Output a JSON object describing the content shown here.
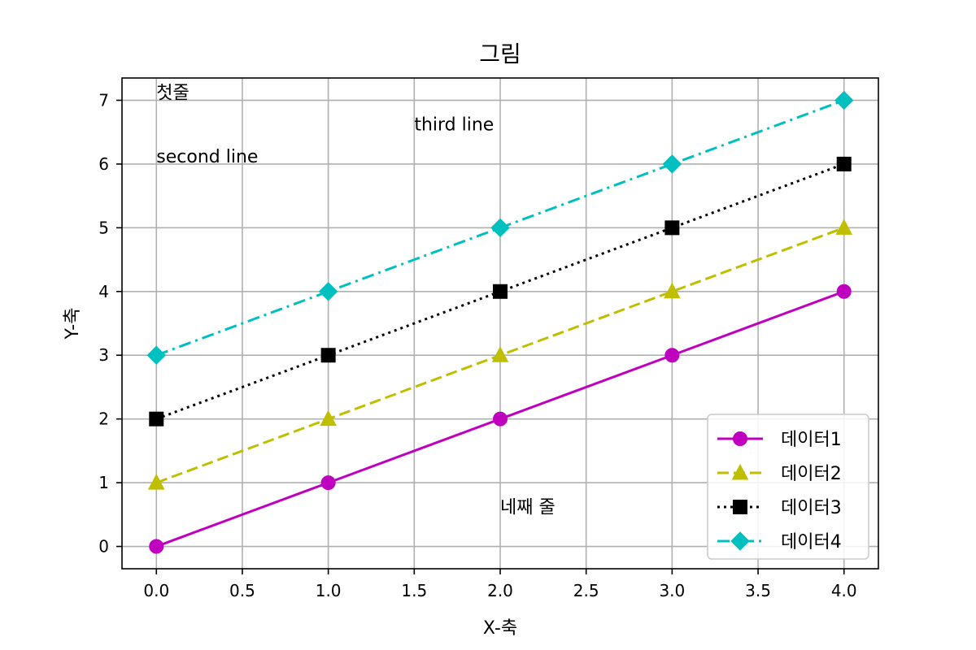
{
  "chart_data": {
    "type": "line",
    "title": "그림",
    "xlabel": "X-축",
    "ylabel": "Y-축",
    "xlim": [
      -0.2,
      4.2
    ],
    "ylim": [
      -0.35,
      7.35
    ],
    "xticks": [
      "0.0",
      "0.5",
      "1.0",
      "1.5",
      "2.0",
      "2.5",
      "3.0",
      "3.5",
      "4.0"
    ],
    "yticks": [
      "0",
      "1",
      "2",
      "3",
      "4",
      "5",
      "6",
      "7"
    ],
    "grid": true,
    "legend_position": "lower-right",
    "x": [
      0,
      1,
      2,
      3,
      4
    ],
    "series": [
      {
        "name": "데이터1",
        "values": [
          0,
          1,
          2,
          3,
          4
        ],
        "color": "#bf00bf",
        "marker": "circle",
        "line_style": "solid"
      },
      {
        "name": "데이터2",
        "values": [
          1,
          2,
          3,
          4,
          5
        ],
        "color": "#bfbf00",
        "marker": "triangle",
        "line_style": "dashed"
      },
      {
        "name": "데이터3",
        "values": [
          2,
          3,
          4,
          5,
          6
        ],
        "color": "#000000",
        "marker": "square",
        "line_style": "dotted"
      },
      {
        "name": "데이터4",
        "values": [
          3,
          4,
          5,
          6,
          7
        ],
        "color": "#00bfbf",
        "marker": "diamond",
        "line_style": "dashdot"
      }
    ],
    "annotations": [
      {
        "text": "첫줄",
        "x": 0,
        "y": 7
      },
      {
        "text": "second line",
        "x": 0,
        "y": 6
      },
      {
        "text": "third line",
        "x": 1.5,
        "y": 6.5
      },
      {
        "text": "네째 줄",
        "x": 2,
        "y": 0.5
      }
    ]
  }
}
